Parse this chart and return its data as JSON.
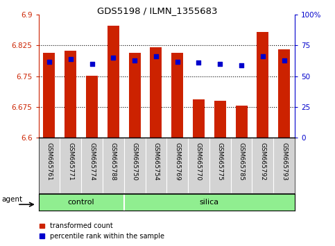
{
  "title": "GDS5198 / ILMN_1355683",
  "samples": [
    "GSM665761",
    "GSM665771",
    "GSM665774",
    "GSM665788",
    "GSM665750",
    "GSM665754",
    "GSM665769",
    "GSM665770",
    "GSM665775",
    "GSM665785",
    "GSM665792",
    "GSM665793"
  ],
  "groups": [
    "control",
    "control",
    "control",
    "control",
    "silica",
    "silica",
    "silica",
    "silica",
    "silica",
    "silica",
    "silica",
    "silica"
  ],
  "bar_values": [
    6.808,
    6.813,
    6.751,
    6.873,
    6.808,
    6.82,
    6.808,
    6.693,
    6.691,
    6.678,
    6.858,
    6.815
  ],
  "dot_values": [
    62,
    64,
    60,
    65,
    63,
    66,
    62,
    61,
    60,
    59,
    66,
    63
  ],
  "ymin": 6.6,
  "ymax": 6.9,
  "y2min": 0,
  "y2max": 100,
  "yticks": [
    6.6,
    6.675,
    6.75,
    6.825,
    6.9
  ],
  "y2ticks": [
    0,
    25,
    50,
    75,
    100
  ],
  "ytick_labels": [
    "6.6",
    "6.675",
    "6.75",
    "6.825",
    "6.9"
  ],
  "y2tick_labels": [
    "0",
    "25",
    "50",
    "75",
    "100%"
  ],
  "bar_color": "#cc2200",
  "dot_color": "#0000cc",
  "group_bg_color": "#90ee90",
  "sample_bg_color": "#d3d3d3",
  "legend_bar": "transformed count",
  "legend_dot": "percentile rank within the sample",
  "bar_width": 0.55,
  "control_count": 4,
  "control_label": "control",
  "silica_label": "silica",
  "agent_label": "agent"
}
